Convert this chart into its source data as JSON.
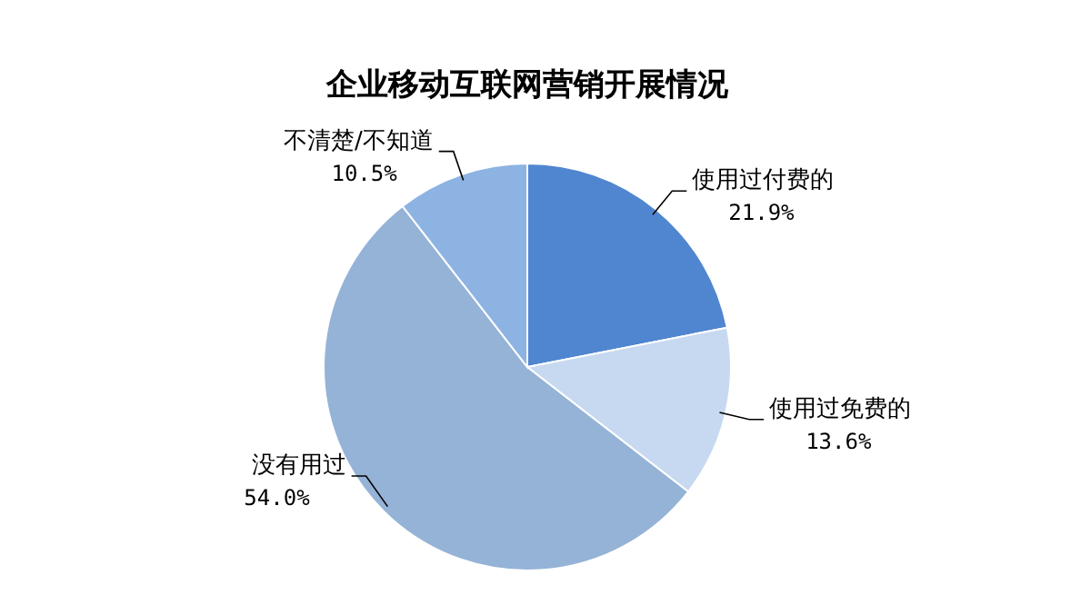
{
  "chart_data": {
    "type": "pie",
    "title": "企业移动互联网营销开展情况",
    "categories": [
      "使用过付费的",
      "使用过免费的",
      "没有用过",
      "不清楚/不知道"
    ],
    "values": [
      21.9,
      13.6,
      54.0,
      10.5
    ],
    "value_labels": [
      "21.9%",
      "13.6%",
      "54.0%",
      "10.5%"
    ],
    "colors": [
      "#4f86cf",
      "#c6d9f1",
      "#95b3d7",
      "#8db3e2"
    ]
  }
}
